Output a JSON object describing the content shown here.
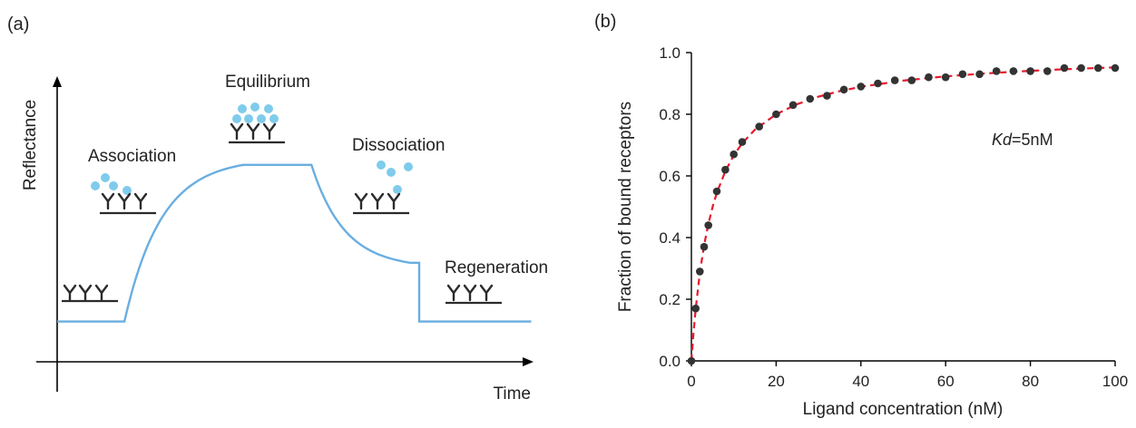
{
  "panels": {
    "a": {
      "label": "(a)",
      "xlabel": "Time",
      "ylabel": "Reflectance",
      "phases": [
        "Association",
        "Equilibrium",
        "Dissociation",
        "Regeneration"
      ]
    },
    "b": {
      "label": "(b)",
      "annotation": {
        "italic": "Kd",
        "rest": "=5nM"
      }
    }
  },
  "colors": {
    "sensorgram": "#6aaee0",
    "analyte": "#7fcbec",
    "fit_curve": "#e8192c",
    "data_points": "#333333",
    "axis": "#000000",
    "text": "#222222"
  },
  "chart_data": [
    {
      "type": "line",
      "title": "",
      "xlabel": "Time",
      "ylabel": "Reflectance",
      "x": [
        0,
        0.78,
        2.16,
        2.95,
        4.1,
        4.2,
        4.35,
        5.5
      ],
      "y": [
        0.12,
        0.12,
        0.74,
        0.76,
        0.36,
        0.36,
        0.12,
        0.12
      ],
      "annotations": [
        "Association",
        "Equilibrium",
        "Dissociation",
        "Regeneration"
      ]
    },
    {
      "type": "scatter",
      "title": "",
      "xlabel": "Ligand concentration (nM)",
      "ylabel": "Fraction of bound receptors",
      "xlim": [
        0,
        100
      ],
      "ylim": [
        0,
        1.0
      ],
      "xticks": [
        0,
        20,
        40,
        60,
        80,
        100
      ],
      "yticks": [
        "0.0",
        "0.2",
        "0.4",
        "0.6",
        "0.8",
        "1.0"
      ],
      "kd": 5,
      "series": [
        {
          "kind": "points",
          "x": [
            0,
            1,
            2,
            3,
            4,
            6,
            8,
            10,
            12,
            16,
            20,
            24,
            28,
            32,
            36,
            40,
            44,
            48,
            52,
            56,
            60,
            64,
            68,
            72,
            76,
            80,
            84,
            88,
            92,
            96,
            100
          ],
          "y": [
            0.0,
            0.17,
            0.29,
            0.37,
            0.44,
            0.55,
            0.62,
            0.67,
            0.71,
            0.76,
            0.8,
            0.83,
            0.85,
            0.86,
            0.88,
            0.89,
            0.9,
            0.91,
            0.91,
            0.92,
            0.92,
            0.93,
            0.93,
            0.94,
            0.94,
            0.94,
            0.94,
            0.95,
            0.95,
            0.95,
            0.95
          ]
        },
        {
          "kind": "fit",
          "style": "dashed",
          "x": [
            0,
            0.5,
            1,
            2,
            3,
            4,
            5,
            6,
            8,
            10,
            12,
            15,
            20,
            25,
            30,
            35,
            40,
            50,
            60,
            70,
            80,
            90,
            100
          ],
          "y": [
            0.0,
            0.091,
            0.167,
            0.286,
            0.375,
            0.444,
            0.5,
            0.545,
            0.615,
            0.667,
            0.706,
            0.75,
            0.8,
            0.833,
            0.857,
            0.875,
            0.889,
            0.909,
            0.923,
            0.933,
            0.941,
            0.947,
            0.952
          ]
        }
      ]
    }
  ]
}
